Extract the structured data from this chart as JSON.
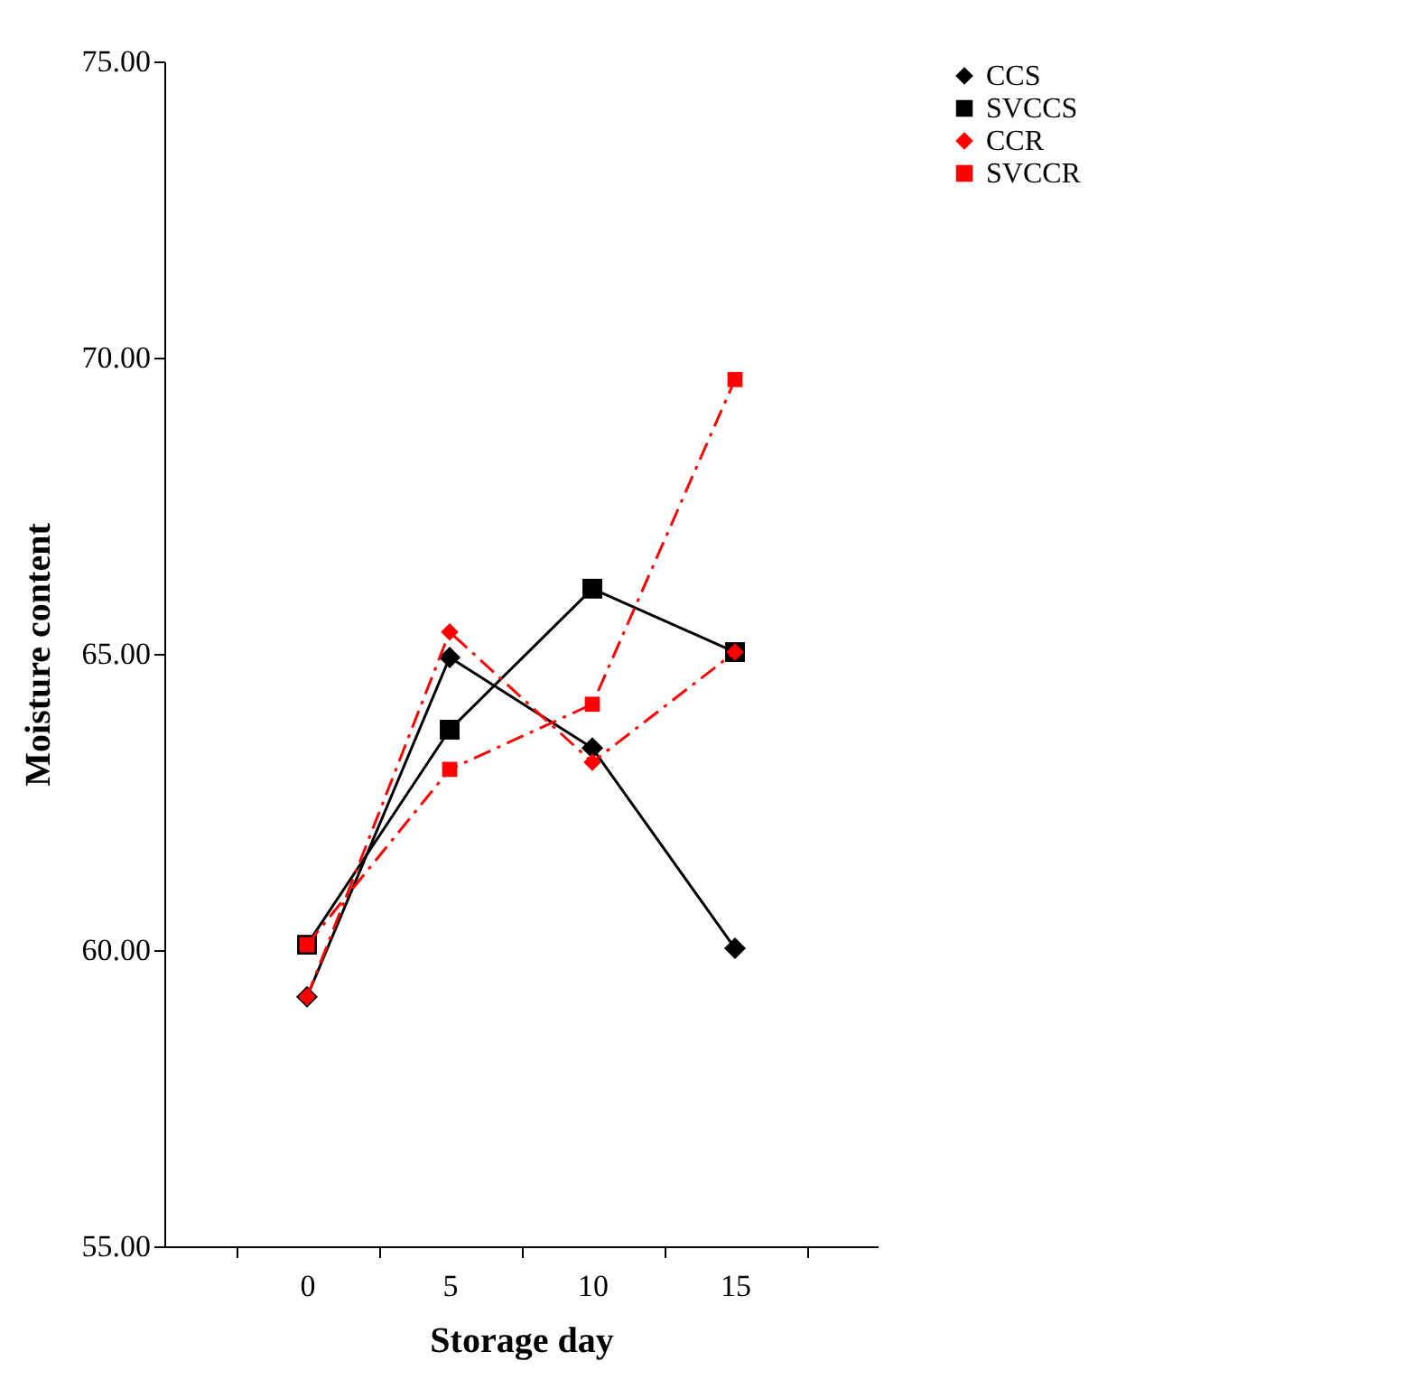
{
  "chart_data": {
    "type": "line",
    "xlabel": "Storage day",
    "ylabel": "Moisture content",
    "categories": [
      "0",
      "5",
      "10",
      "15"
    ],
    "series": [
      {
        "name": "CCS",
        "color": "#000000",
        "marker": "diamond",
        "line_style": "solid",
        "values": [
          59.21,
          64.94,
          63.41,
          60.03
        ]
      },
      {
        "name": "SVCCS",
        "color": "#000000",
        "marker": "square",
        "line_style": "solid",
        "values": [
          60.09,
          63.72,
          66.1,
          65.03
        ]
      },
      {
        "name": "CCR",
        "color": "#ff0000",
        "marker": "diamond",
        "line_style": "dashed",
        "values": [
          59.21,
          65.37,
          63.17,
          65.03
        ]
      },
      {
        "name": "SVCCR",
        "color": "#ff0000",
        "marker": "square",
        "line_style": "dashed",
        "values": [
          60.09,
          63.05,
          64.15,
          69.63
        ]
      }
    ],
    "ylim": [
      55,
      75
    ],
    "yticks": [
      {
        "value": 55,
        "label": "55.00"
      },
      {
        "value": 60,
        "label": "60.00"
      },
      {
        "value": 65,
        "label": "65.00"
      },
      {
        "value": 70,
        "label": "70.00"
      },
      {
        "value": 75,
        "label": "75.00"
      }
    ],
    "grid": false,
    "legend": "top right"
  }
}
